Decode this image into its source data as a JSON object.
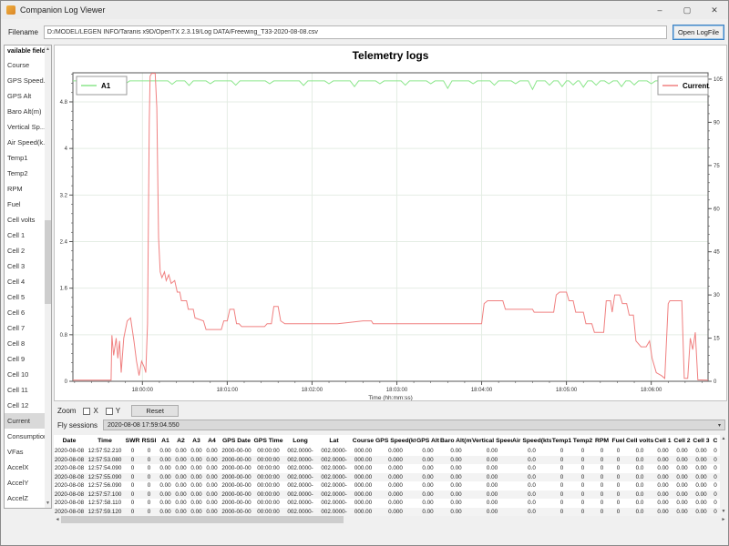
{
  "window": {
    "title": "Companion Log Viewer"
  },
  "icons": {
    "minimize": "–",
    "maximize": "▢",
    "close": "✕",
    "dropdown": "▾",
    "scroll_up": "▲",
    "scroll_down": "▼",
    "scroll_left": "◄",
    "scroll_right": "►"
  },
  "toolbar": {
    "filename_label": "Filename",
    "filename_value": "D:/MODEL/LEGEN INFO/Taranis x9D/OpenTX 2.3.19/Log DATA/Freewing_T33-2020-08-08.csv",
    "open_button": "Open LogFile"
  },
  "sidebar": {
    "header": "vailable field",
    "selected": "Current",
    "items": [
      "Course",
      "GPS Speed...",
      "GPS Alt",
      "Baro Alt(m)",
      "Vertical Sp...",
      "Air Speed(k...",
      "Temp1",
      "Temp2",
      "RPM",
      "Fuel",
      "Cell volts",
      "Cell 1",
      "Cell 2",
      "Cell 3",
      "Cell 4",
      "Cell 5",
      "Cell 6",
      "Cell 7",
      "Cell 8",
      "Cell 9",
      "Cell 10",
      "Cell 11",
      "Cell 12",
      "Current",
      "Consumption",
      "VFas",
      "AccelX",
      "AccelY",
      "AccelZ"
    ]
  },
  "controls": {
    "zoom_label": "Zoom",
    "x_label": "X",
    "y_label": "Y",
    "reset_label": "Reset",
    "fly_label": "Fly sessions",
    "fly_value": "2020-08-08 17:59:04.550"
  },
  "chart_data": {
    "type": "line",
    "title": "Telemetry logs",
    "xlabel": "Time (hh:mm:ss)",
    "grid": true,
    "x_ticks": [
      "18:00:00",
      "18:01:00",
      "18:02:00",
      "18:03:00",
      "18:04:00",
      "18:05:00",
      "18:06:00"
    ],
    "x_tick_minutes": [
      0,
      1,
      2,
      3,
      4,
      5,
      6
    ],
    "x_range_minutes": [
      -0.82,
      6.67
    ],
    "y_left_ticks": [
      0,
      0.8,
      1.6,
      2.4,
      3.2,
      4,
      4.8
    ],
    "y_left_top": 5.3,
    "y_right_ticks": [
      0,
      15,
      30,
      45,
      60,
      75,
      90,
      105
    ],
    "y_right_top": 107.2,
    "colors": {
      "a1": "#8ce68c",
      "current": "#f08080",
      "grid": "#e4ede4",
      "axis": "#555555"
    },
    "legend": [
      {
        "name": "A1",
        "color": "#8ce68c",
        "position": "top-left"
      },
      {
        "name": "Current",
        "color": "#f08080",
        "position": "top-right"
      }
    ],
    "series": [
      {
        "name": "A1",
        "axis": "right",
        "baseline": 104.4,
        "dips": [
          [
            -0.55,
            1.5
          ],
          [
            -0.2,
            1
          ],
          [
            0.35,
            1.2
          ],
          [
            0.55,
            1.6
          ],
          [
            0.8,
            1
          ],
          [
            1.1,
            1.5
          ],
          [
            1.5,
            1
          ],
          [
            1.9,
            1.6
          ],
          [
            2.2,
            1
          ],
          [
            2.5,
            2
          ],
          [
            2.8,
            1
          ],
          [
            3.1,
            1.5
          ],
          [
            3.4,
            1
          ],
          [
            3.6,
            2.6
          ],
          [
            3.9,
            1
          ],
          [
            4.15,
            1.5
          ],
          [
            4.4,
            1
          ],
          [
            4.6,
            3
          ],
          [
            4.8,
            1.5
          ],
          [
            4.95,
            2
          ],
          [
            5.08,
            1.4
          ],
          [
            5.2,
            2.2
          ],
          [
            5.35,
            1.5
          ],
          [
            5.5,
            1
          ],
          [
            5.65,
            2
          ],
          [
            5.8,
            1.4
          ],
          [
            6.0,
            1
          ],
          [
            6.2,
            2.4
          ],
          [
            6.35,
            1.5
          ]
        ]
      },
      {
        "name": "Current",
        "axis": "right",
        "points": [
          [
            -0.82,
            0.4
          ],
          [
            -0.37,
            0.4
          ],
          [
            -0.36,
            16
          ],
          [
            -0.34,
            9
          ],
          [
            -0.31,
            15
          ],
          [
            -0.29,
            8
          ],
          [
            -0.27,
            14
          ],
          [
            -0.25,
            3
          ],
          [
            -0.22,
            15
          ],
          [
            -0.18,
            21
          ],
          [
            -0.14,
            22
          ],
          [
            -0.1,
            14
          ],
          [
            -0.07,
            7
          ],
          [
            -0.04,
            2
          ],
          [
            -0.01,
            7
          ],
          [
            0.02,
            5
          ],
          [
            0.04,
            3
          ],
          [
            0.06,
            20
          ],
          [
            0.08,
            90
          ],
          [
            0.09,
            106
          ],
          [
            0.11,
            107
          ],
          [
            0.15,
            107
          ],
          [
            0.17,
            95
          ],
          [
            0.19,
            50
          ],
          [
            0.21,
            38
          ],
          [
            0.23,
            36
          ],
          [
            0.26,
            38
          ],
          [
            0.28,
            35
          ],
          [
            0.31,
            37
          ],
          [
            0.34,
            34
          ],
          [
            0.38,
            35
          ],
          [
            0.41,
            31
          ],
          [
            0.44,
            31
          ],
          [
            0.46,
            28
          ],
          [
            0.52,
            28
          ],
          [
            0.54,
            25
          ],
          [
            0.6,
            25
          ],
          [
            0.62,
            22
          ],
          [
            0.72,
            21
          ],
          [
            0.75,
            18
          ],
          [
            0.93,
            18
          ],
          [
            0.96,
            21
          ],
          [
            1.0,
            21
          ],
          [
            1.03,
            25
          ],
          [
            1.08,
            25
          ],
          [
            1.11,
            20
          ],
          [
            1.14,
            20
          ],
          [
            1.17,
            19
          ],
          [
            1.44,
            19
          ],
          [
            1.47,
            20
          ],
          [
            1.52,
            20
          ],
          [
            1.55,
            26
          ],
          [
            1.6,
            26
          ],
          [
            1.63,
            21
          ],
          [
            1.68,
            20
          ],
          [
            2.0,
            20
          ],
          [
            2.3,
            20
          ],
          [
            2.6,
            21
          ],
          [
            2.7,
            21
          ],
          [
            2.72,
            20
          ],
          [
            3.0,
            20
          ],
          [
            3.5,
            20
          ],
          [
            4.0,
            20
          ],
          [
            4.03,
            27
          ],
          [
            4.07,
            28
          ],
          [
            4.25,
            28
          ],
          [
            4.28,
            25
          ],
          [
            4.6,
            25
          ],
          [
            4.62,
            24
          ],
          [
            4.85,
            24
          ],
          [
            4.88,
            30
          ],
          [
            4.92,
            31
          ],
          [
            5.0,
            31
          ],
          [
            5.03,
            28
          ],
          [
            5.08,
            28
          ],
          [
            5.11,
            24
          ],
          [
            5.2,
            24
          ],
          [
            5.23,
            20
          ],
          [
            5.3,
            20
          ],
          [
            5.33,
            17
          ],
          [
            5.44,
            17
          ],
          [
            5.47,
            28
          ],
          [
            5.52,
            28
          ],
          [
            5.54,
            24
          ],
          [
            5.57,
            30
          ],
          [
            5.63,
            30
          ],
          [
            5.66,
            27
          ],
          [
            5.71,
            27
          ],
          [
            5.74,
            23
          ],
          [
            5.79,
            23
          ],
          [
            5.82,
            14
          ],
          [
            5.88,
            12
          ],
          [
            5.94,
            12
          ],
          [
            5.98,
            14
          ],
          [
            6.01,
            8
          ],
          [
            6.06,
            3
          ],
          [
            6.12,
            2
          ],
          [
            6.16,
            1
          ],
          [
            6.2,
            27
          ],
          [
            6.22,
            28
          ],
          [
            6.36,
            28
          ],
          [
            6.39,
            1
          ],
          [
            6.43,
            1
          ],
          [
            6.46,
            15
          ],
          [
            6.49,
            11
          ],
          [
            6.52,
            17
          ],
          [
            6.55,
            0.5
          ],
          [
            6.67,
            0.4
          ]
        ]
      }
    ]
  },
  "table": {
    "columns": [
      "Date",
      "Time",
      "SWR",
      "RSSI",
      "A1",
      "A2",
      "A3",
      "A4",
      "GPS Date",
      "GPS Time",
      "Long",
      "Lat",
      "Course",
      "GPS Speed(kts)",
      "GPS Alt",
      "Baro Alt(m)",
      "Vertical Speed",
      "Air Speed(kts)",
      "Temp1",
      "Temp2",
      "RPM",
      "Fuel",
      "Cell volts",
      "Cell 1",
      "Cell 2",
      "Cell 3",
      "C"
    ],
    "rows": [
      [
        "2020-08-08",
        "12:57:52.210",
        "0",
        "0",
        "0.00",
        "0.00",
        "0.00",
        "0.00",
        "2000-00-00",
        "00:00:00",
        "002.0000-",
        "002.0000-",
        "000.00",
        "0.000",
        "0.00",
        "0.00",
        "0.00",
        "0.0",
        "0",
        "0",
        "0",
        "0",
        "0.0",
        "0.00",
        "0.00",
        "0.00",
        "0"
      ],
      [
        "2020-08-08",
        "12:57:53.080",
        "0",
        "0",
        "0.00",
        "0.00",
        "0.00",
        "0.00",
        "2000-00-00",
        "00:00:00",
        "002.0000-",
        "002.0000-",
        "000.00",
        "0.000",
        "0.00",
        "0.00",
        "0.00",
        "0.0",
        "0",
        "0",
        "0",
        "0",
        "0.0",
        "0.00",
        "0.00",
        "0.00",
        "0"
      ],
      [
        "2020-08-08",
        "12:57:54.090",
        "0",
        "0",
        "0.00",
        "0.00",
        "0.00",
        "0.00",
        "2000-00-00",
        "00:00:00",
        "002.0000-",
        "002.0000-",
        "000.00",
        "0.000",
        "0.00",
        "0.00",
        "0.00",
        "0.0",
        "0",
        "0",
        "0",
        "0",
        "0.0",
        "0.00",
        "0.00",
        "0.00",
        "0"
      ],
      [
        "2020-08-08",
        "12:57:55.090",
        "0",
        "0",
        "0.00",
        "0.00",
        "0.00",
        "0.00",
        "2000-00-00",
        "00:00:00",
        "002.0000-",
        "002.0000-",
        "000.00",
        "0.000",
        "0.00",
        "0.00",
        "0.00",
        "0.0",
        "0",
        "0",
        "0",
        "0",
        "0.0",
        "0.00",
        "0.00",
        "0.00",
        "0"
      ],
      [
        "2020-08-08",
        "12:57:56.090",
        "0",
        "0",
        "0.00",
        "0.00",
        "0.00",
        "0.00",
        "2000-00-00",
        "00:00:00",
        "002.0000-",
        "002.0000-",
        "000.00",
        "0.000",
        "0.00",
        "0.00",
        "0.00",
        "0.0",
        "0",
        "0",
        "0",
        "0",
        "0.0",
        "0.00",
        "0.00",
        "0.00",
        "0"
      ],
      [
        "2020-08-08",
        "12:57:57.100",
        "0",
        "0",
        "0.00",
        "0.00",
        "0.00",
        "0.00",
        "2000-00-00",
        "00:00:00",
        "002.0000-",
        "002.0000-",
        "000.00",
        "0.000",
        "0.00",
        "0.00",
        "0.00",
        "0.0",
        "0",
        "0",
        "0",
        "0",
        "0.0",
        "0.00",
        "0.00",
        "0.00",
        "0"
      ],
      [
        "2020-08-08",
        "12:57:58.110",
        "0",
        "0",
        "0.00",
        "0.00",
        "0.00",
        "0.00",
        "2000-00-00",
        "00:00:00",
        "002.0000-",
        "002.0000-",
        "000.00",
        "0.000",
        "0.00",
        "0.00",
        "0.00",
        "0.0",
        "0",
        "0",
        "0",
        "0",
        "0.0",
        "0.00",
        "0.00",
        "0.00",
        "0"
      ],
      [
        "2020-08-08",
        "12:57:59.120",
        "0",
        "0",
        "0.00",
        "0.00",
        "0.00",
        "0.00",
        "2000-00-00",
        "00:00:00",
        "002.0000-",
        "002.0000-",
        "000.00",
        "0.000",
        "0.00",
        "0.00",
        "0.00",
        "0.0",
        "0",
        "0",
        "0",
        "0",
        "0.0",
        "0.00",
        "0.00",
        "0.00",
        "0"
      ]
    ]
  }
}
